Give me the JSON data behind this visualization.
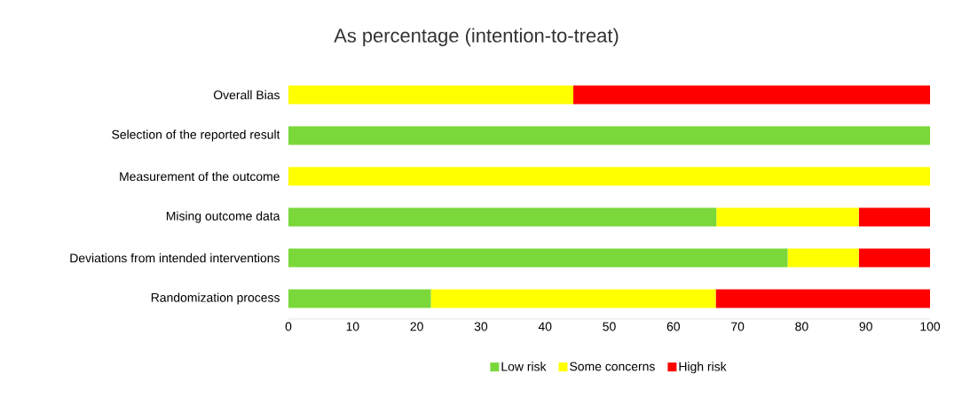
{
  "chart_data": {
    "type": "bar",
    "orientation": "horizontal",
    "stacked": true,
    "title": "As percentage (intention-to-treat)",
    "categories": [
      "Overall Bias",
      "Selection of the reported result",
      "Measurement of the outcome",
      "Mising outcome data",
      "Deviations from intended interventions",
      "Randomization process"
    ],
    "series": [
      {
        "name": "Low risk",
        "color": "#7ad83a",
        "values": [
          0,
          100,
          0,
          66.7,
          77.8,
          22.2
        ]
      },
      {
        "name": "Some concerns",
        "color": "#ffff00",
        "values": [
          44.4,
          0,
          100,
          22.2,
          11.1,
          44.4
        ]
      },
      {
        "name": "High risk",
        "color": "#ff0000",
        "values": [
          55.6,
          0,
          0,
          11.1,
          11.1,
          33.4
        ]
      }
    ],
    "xlim": [
      0,
      100
    ],
    "xticks": [
      0,
      10,
      20,
      30,
      40,
      50,
      60,
      70,
      80,
      90,
      100
    ],
    "legend": "bottom",
    "grid": false
  }
}
